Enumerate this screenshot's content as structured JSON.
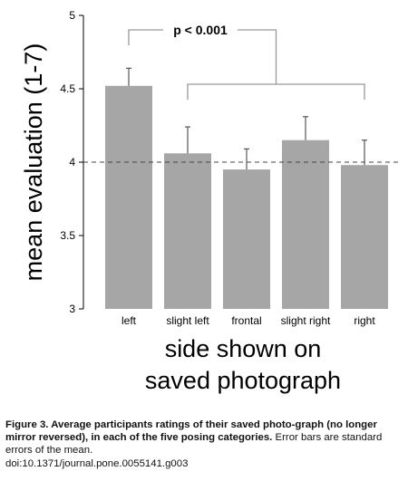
{
  "chart_data": {
    "type": "bar",
    "categories": [
      "left",
      "slight left",
      "frontal",
      "slight right",
      "right"
    ],
    "values": [
      4.52,
      4.06,
      3.95,
      4.15,
      3.98
    ],
    "error": [
      0.12,
      0.18,
      0.14,
      0.16,
      0.17
    ],
    "ylabel": "mean evaluation (1-7)",
    "xlabel": "side shown on saved photograph",
    "xlabel_lines": [
      "side shown on",
      "saved photograph"
    ],
    "ylim": [
      3,
      5
    ],
    "yticks": [
      3,
      3.5,
      4,
      4.5,
      5
    ],
    "ytick_labels": [
      "3",
      "3.5",
      "4",
      "4.5",
      "5"
    ],
    "reference_line": 4,
    "annotation": "p < 0.001",
    "comparison": {
      "group_a": [
        0
      ],
      "group_b": [
        1,
        2,
        3,
        4
      ]
    },
    "bar_color": "#a6a6a6",
    "grid": false,
    "legend": false
  },
  "caption": {
    "bold_text": "Figure 3. Average participants ratings of their saved photo-graph (no longer mirror reversed), in each of the five posing categories.",
    "regular_text": " Error bars are standard errors of the mean.",
    "doi": "doi:10.1371/journal.pone.0055141.g003"
  }
}
